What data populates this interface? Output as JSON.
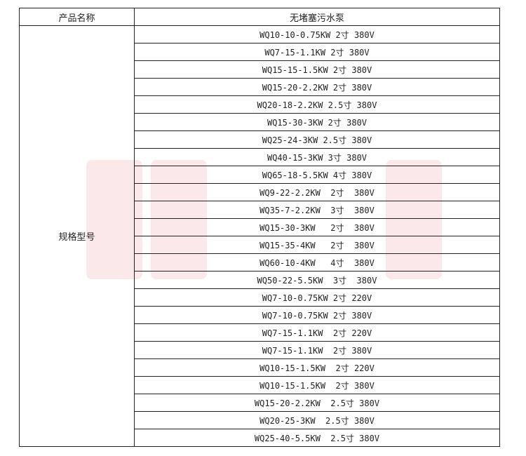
{
  "header": {
    "col1": "产品名称",
    "col2": "无堵塞污水泵"
  },
  "row_label": "规格型号",
  "specs": [
    "WQ10-10-0.75KW 2寸 380V",
    "WQ7-15-1.1KW 2寸 380V",
    "WQ15-15-1.5KW 2寸 380V",
    "WQ15-20-2.2KW 2寸 380V",
    "WQ20-18-2.2KW 2.5寸 380V",
    "WQ15-30-3KW 2寸 380V",
    "WQ25-24-3KW 2.5寸 380V",
    "WQ40-15-3KW 3寸 380V",
    "WQ65-18-5.5KW 4寸 380V",
    "WQ9-22-2.2KW  2寸  380V",
    "WQ35-7-2.2KW  3寸  380V",
    "WQ15-30-3KW   2寸  380V",
    "WQ15-35-4KW   2寸  380V",
    "WQ60-10-4KW   4寸  380V",
    "WQ50-22-5.5KW  3寸  380V",
    "WQ7-10-0.75KW 2寸 220V",
    "WQ7-10-0.75KW 2寸 380V",
    "WQ7-15-1.1KW  2寸 220V",
    "WQ7-15-1.1KW  2寸 380V",
    "WQ10-15-1.5KW  2寸 220V",
    "WQ10-15-1.5KW  2寸 380V",
    "WQ15-20-2.2KW  2.5寸 380V",
    "WQ20-25-3KW  2.5寸 380V",
    "WQ25-40-5.5KW  2.5寸 380V"
  ]
}
